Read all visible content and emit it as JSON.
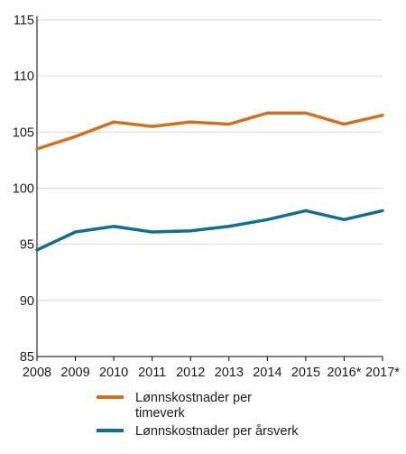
{
  "chart_data": {
    "type": "line",
    "title": "",
    "xlabel": "",
    "ylabel": "",
    "categories": [
      "2008",
      "2009",
      "2010",
      "2011",
      "2012",
      "2013",
      "2014",
      "2015",
      "2016*",
      "2017*"
    ],
    "ylim": [
      85,
      115
    ],
    "yticks": [
      85,
      90,
      95,
      100,
      105,
      110,
      115
    ],
    "grid": true,
    "legend_position": "bottom",
    "series": [
      {
        "name": "Lønnskostnader per timeverk",
        "legend_lines": [
          "Lønnskostnader per",
          "timeverk"
        ],
        "color": "#d2701f",
        "values": [
          103.5,
          104.6,
          105.9,
          105.5,
          105.9,
          105.7,
          106.7,
          106.7,
          105.7,
          106.5
        ]
      },
      {
        "name": "Lønnskostnader per årsverk",
        "legend_lines": [
          "Lønnskostnader per årsverk"
        ],
        "color": "#126d92",
        "values": [
          94.5,
          96.1,
          96.6,
          96.1,
          96.2,
          96.6,
          97.2,
          98.0,
          97.2,
          98.0
        ]
      }
    ]
  }
}
